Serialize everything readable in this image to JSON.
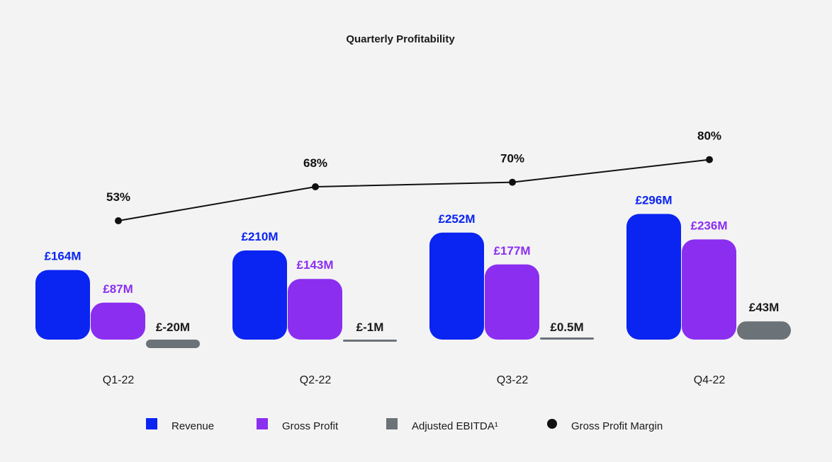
{
  "chart_data": {
    "type": "bar",
    "title": "Quarterly Profitability",
    "categories": [
      "Q1-22",
      "Q2-22",
      "Q3-22",
      "Q4-22"
    ],
    "series": [
      {
        "name": "Revenue",
        "kind": "bar",
        "color": "#0a24f2",
        "values": [
          164,
          210,
          252,
          296
        ],
        "labels": [
          "£164M",
          "£210M",
          "£252M",
          "£296M"
        ]
      },
      {
        "name": "Gross Profit",
        "kind": "bar",
        "color": "#8b2ef0",
        "values": [
          87,
          143,
          177,
          236
        ],
        "labels": [
          "£87M",
          "£143M",
          "£177M",
          "£236M"
        ]
      },
      {
        "name": "Adjusted EBITDA¹",
        "kind": "bar",
        "color": "#6b7378",
        "values": [
          -20,
          -1,
          0.5,
          43
        ],
        "labels": [
          "£-20M",
          "£-1M",
          "£0.5M",
          "£43M"
        ]
      },
      {
        "name": "Gross Profit Margin",
        "kind": "line",
        "color": "#111111",
        "values": [
          53,
          68,
          70,
          80
        ],
        "labels": [
          "53%",
          "68%",
          "70%",
          "80%"
        ]
      }
    ],
    "unit": "£M",
    "legend_position": "bottom",
    "grid": false
  }
}
